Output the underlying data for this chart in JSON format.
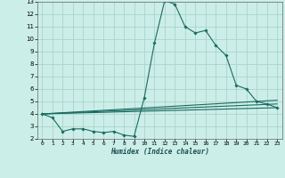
{
  "title": "",
  "xlabel": "Humidex (Indice chaleur)",
  "bg_color": "#cceee8",
  "grid_color": "#aad4cc",
  "line_color": "#1a6b60",
  "xlim": [
    -0.5,
    23.5
  ],
  "ylim": [
    2,
    13
  ],
  "xticks": [
    0,
    1,
    2,
    3,
    4,
    5,
    6,
    7,
    8,
    9,
    10,
    11,
    12,
    13,
    14,
    15,
    16,
    17,
    18,
    19,
    20,
    21,
    22,
    23
  ],
  "yticks": [
    2,
    3,
    4,
    5,
    6,
    7,
    8,
    9,
    10,
    11,
    12,
    13
  ],
  "lines": [
    {
      "x": [
        0,
        1,
        2,
        3,
        4,
        5,
        6,
        7,
        8,
        9,
        10,
        11,
        12,
        13,
        14,
        15,
        16,
        17,
        18,
        19,
        20,
        21,
        22,
        23
      ],
      "y": [
        4.0,
        3.7,
        2.6,
        2.8,
        2.8,
        2.6,
        2.5,
        2.6,
        2.3,
        2.2,
        5.3,
        9.7,
        13.1,
        12.8,
        11.0,
        10.5,
        10.7,
        9.5,
        8.7,
        6.3,
        6.0,
        5.0,
        4.8,
        4.5
      ],
      "marker": true
    },
    {
      "x": [
        0,
        23
      ],
      "y": [
        4.0,
        4.5
      ],
      "marker": false
    },
    {
      "x": [
        0,
        23
      ],
      "y": [
        4.0,
        4.8
      ],
      "marker": false
    },
    {
      "x": [
        0,
        23
      ],
      "y": [
        4.0,
        5.1
      ],
      "marker": false
    }
  ]
}
